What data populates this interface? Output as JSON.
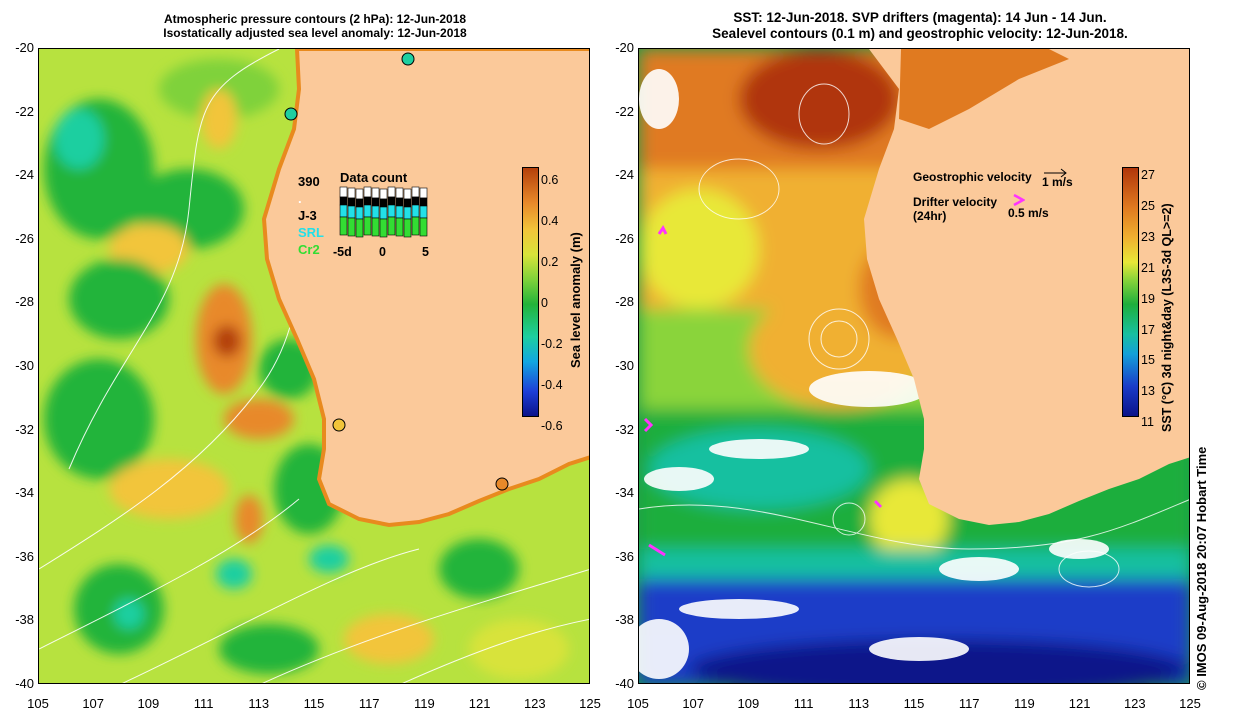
{
  "left_panel": {
    "title_line1": "Atmospheric pressure contours (2 hPa): 12-Jun-2018",
    "title_line2": "Isostatically adjusted sea level anomaly: 12-Jun-2018",
    "colorbar_label": "Sea level anomaly (m)",
    "colorbar_ticks": [
      "0.6",
      "0.4",
      "0.2",
      "0",
      "-0.2",
      "-0.4",
      "-0.6"
    ],
    "data_count": {
      "title": "Data count",
      "sources": [
        "390",
        "J-3",
        "SRL",
        "Cr2"
      ],
      "source_colors": [
        "#ffffff",
        "#000000",
        "#22e0e8",
        "#33dd33"
      ],
      "axis_labels": [
        "-5d",
        "0",
        "5"
      ]
    }
  },
  "right_panel": {
    "title_line1": "SST: 12-Jun-2018. SVP drifters (magenta): 14 Jun - 14 Jun.",
    "title_line2": "Sealevel contours (0.1 m) and geostrophic velocity: 12-Jun-2018.",
    "colorbar_label": "SST (°C) 3d night&day (L3S-3d QL>=2)",
    "colorbar_ticks": [
      "27",
      "25",
      "23",
      "21",
      "19",
      "17",
      "15",
      "13",
      "11"
    ],
    "legend_geostrophic": "Geostrophic velocity",
    "legend_geostrophic_scale": "1 m/s",
    "legend_drifter": "Drifter velocity",
    "legend_drifter_period": "(24hr)",
    "legend_drifter_scale": "0.5 m/s"
  },
  "axes": {
    "y_ticks": [
      "-20",
      "-22",
      "-24",
      "-26",
      "-28",
      "-30",
      "-32",
      "-34",
      "-36",
      "-38",
      "-40"
    ],
    "x_ticks": [
      "105",
      "107",
      "109",
      "111",
      "113",
      "115",
      "117",
      "119",
      "121",
      "123",
      "125"
    ]
  },
  "credit": "© IMOS 09-Aug-2018 20:07 Hobart Time",
  "colors": {
    "land": "#fbc99a",
    "drifter": "#ff33ff",
    "contour": "#ffffff"
  }
}
